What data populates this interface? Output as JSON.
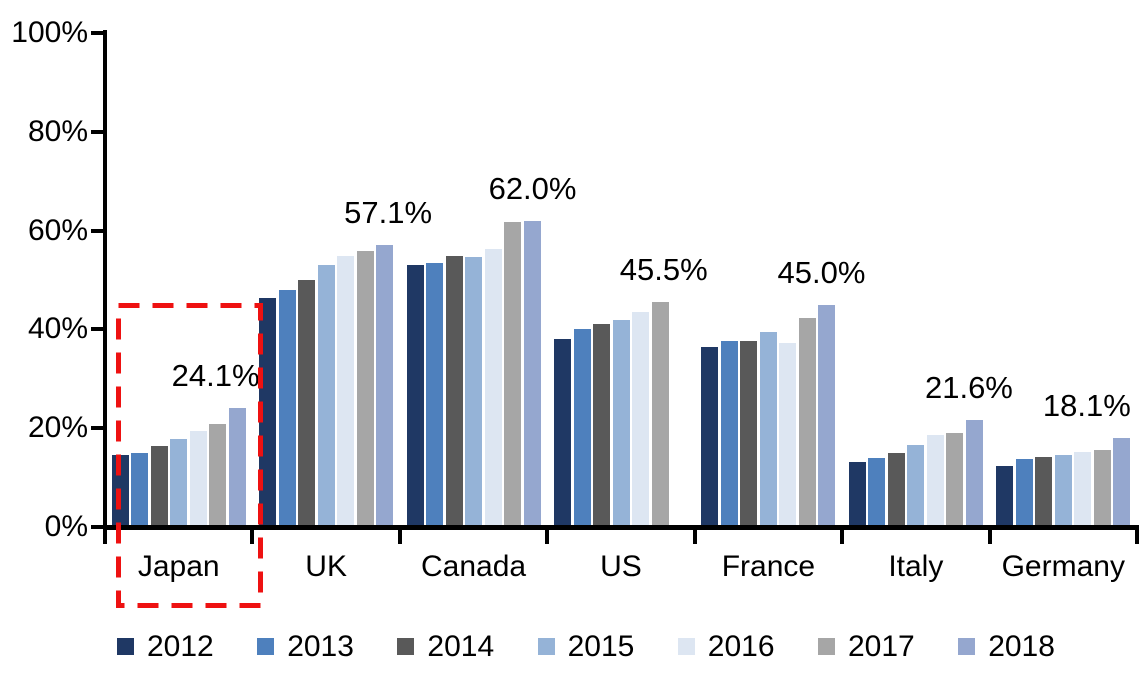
{
  "chart_data": {
    "type": "bar",
    "grouped": true,
    "title": "",
    "xlabel": "",
    "ylabel": "",
    "ylim": [
      0,
      100
    ],
    "ytick_labels": [
      "0%",
      "20%",
      "40%",
      "60%",
      "80%",
      "100%"
    ],
    "grid": false,
    "legend_position": "bottom",
    "categories": [
      "Japan",
      "UK",
      "Canada",
      "US",
      "France",
      "Italy",
      "Germany"
    ],
    "series": [
      {
        "name": "2012",
        "color": "#1F3864",
        "values": [
          14.6,
          46.3,
          53.1,
          38.1,
          36.5,
          13.2,
          12.4
        ]
      },
      {
        "name": "2013",
        "color": "#4E80BD",
        "values": [
          15.0,
          47.9,
          53.5,
          40.0,
          37.7,
          14.0,
          13.8
        ]
      },
      {
        "name": "2014",
        "color": "#595959",
        "values": [
          16.3,
          49.9,
          54.9,
          41.0,
          37.7,
          15.0,
          14.1
        ]
      },
      {
        "name": "2015",
        "color": "#95B3D7",
        "values": [
          17.8,
          53.1,
          54.7,
          42.0,
          39.4,
          16.6,
          14.5
        ]
      },
      {
        "name": "2016",
        "color": "#DDE6F2",
        "values": [
          19.5,
          54.8,
          56.2,
          43.6,
          37.3,
          18.7,
          15.2
        ]
      },
      {
        "name": "2017",
        "color": "#A6A6A6",
        "values": [
          20.9,
          55.8,
          61.7,
          45.5,
          42.3,
          19.1,
          15.6
        ]
      },
      {
        "name": "2018",
        "color": "#95A7CF",
        "values": [
          24.1,
          57.1,
          62.0,
          null,
          45.0,
          21.6,
          18.1
        ]
      }
    ],
    "value_labels": [
      "24.1%",
      "57.1%",
      "62.0%",
      "45.5%",
      "45.0%",
      "21.6%",
      "18.1%"
    ],
    "highlight": {
      "category": "Japan",
      "style": "dashed-box",
      "color": "#EE1111"
    }
  }
}
